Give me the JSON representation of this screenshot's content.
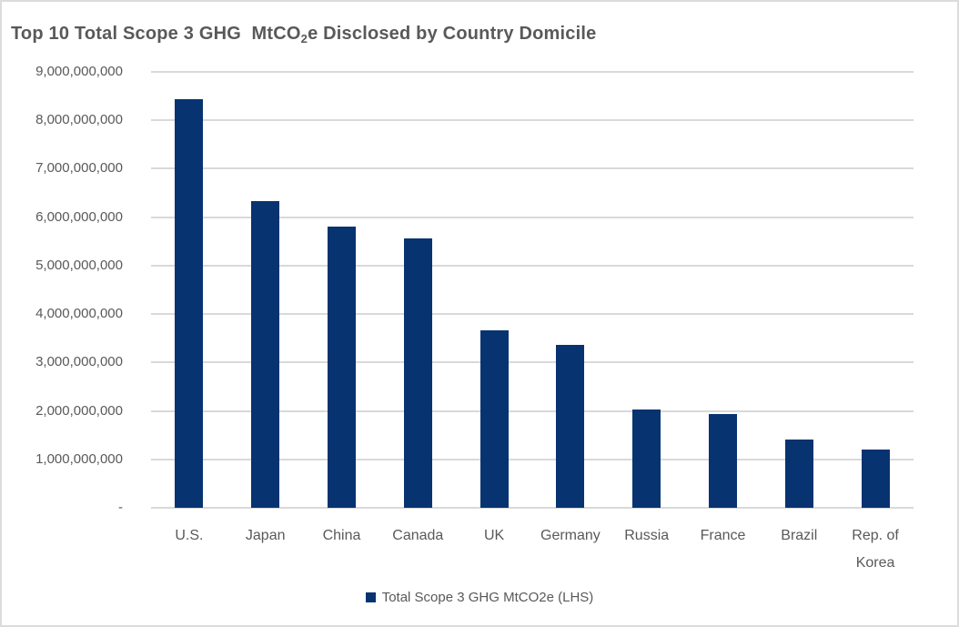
{
  "title": {
    "prefix": "Top 10 Total Scope 3 GHG  MtCO",
    "subscript": "2",
    "suffix": "e Disclosed by Country Domicile"
  },
  "colors": {
    "bar": "#073370",
    "gridline": "#d9d9d9",
    "text": "#595959",
    "background": "#ffffff",
    "border": "#dcdcdc"
  },
  "y_axis": {
    "min": 0,
    "max": 9000000000,
    "step": 1000000000,
    "tick_labels": [
      "-",
      "1,000,000,000",
      "2,000,000,000",
      "3,000,000,000",
      "4,000,000,000",
      "5,000,000,000",
      "6,000,000,000",
      "7,000,000,000",
      "8,000,000,000",
      "9,000,000,000"
    ]
  },
  "legend": {
    "label": "Total Scope 3 GHG MtCO2e (LHS)"
  },
  "chart_data": {
    "type": "bar",
    "title": "Top 10 Total Scope 3 GHG MtCO2e Disclosed by Country Domicile",
    "categories": [
      "U.S.",
      "Japan",
      "China",
      "Canada",
      "UK",
      "Germany",
      "Russia",
      "France",
      "Brazil",
      "Rep. of Korea"
    ],
    "series": [
      {
        "name": "Total Scope 3 GHG MtCO2e (LHS)",
        "values": [
          8430000000,
          6340000000,
          5810000000,
          5570000000,
          3660000000,
          3370000000,
          2030000000,
          1940000000,
          1410000000,
          1210000000
        ]
      }
    ],
    "xlabel": "",
    "ylabel": "",
    "ylim": [
      0,
      9000000000
    ],
    "grid": true,
    "legend_position": "bottom"
  }
}
